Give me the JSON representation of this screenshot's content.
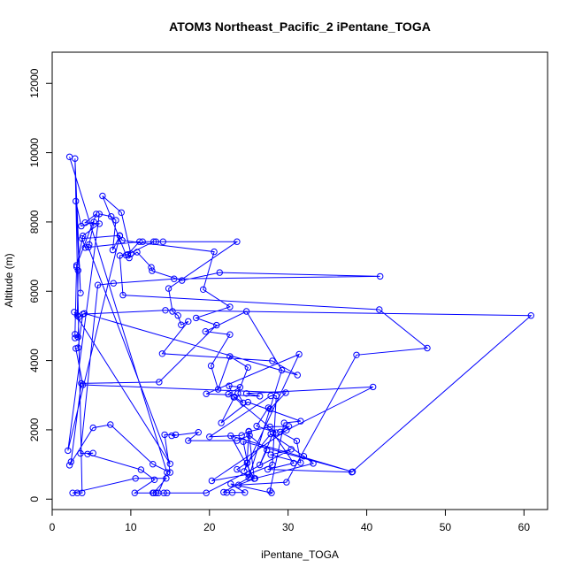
{
  "chart_data": {
    "type": "line",
    "title": "ATOM3 Northeast_Pacific_2 iPentane_TOGA",
    "xlabel": "iPentane_TOGA",
    "ylabel": "Altitude (m)",
    "xlim": [
      0,
      63
    ],
    "ylim": [
      -300,
      12900
    ],
    "x_ticks": [
      0,
      10,
      20,
      30,
      40,
      50,
      60
    ],
    "y_ticks": [
      0,
      2000,
      4000,
      6000,
      8000,
      10000,
      12000
    ],
    "series_color": "#0000ff",
    "marker": "open-circle",
    "series": [
      {
        "points": [
          [
            2.2,
            9880
          ],
          [
            14.6,
            770
          ],
          [
            13.5,
            180
          ],
          [
            12.9,
            180
          ],
          [
            14.5,
            600
          ],
          [
            10.6,
            600
          ],
          [
            2.6,
            180
          ],
          [
            3.2,
            180
          ],
          [
            3.8,
            180
          ],
          [
            2.9,
            9830
          ],
          [
            3.6,
            5950
          ],
          [
            3.0,
            8600
          ],
          [
            3.7,
            7880
          ],
          [
            5.3,
            8000
          ],
          [
            4.7,
            7350
          ],
          [
            4.6,
            7270
          ],
          [
            15.0,
            1020
          ],
          [
            2.8,
            5400
          ],
          [
            3.2,
            5300
          ],
          [
            3.3,
            6600
          ],
          [
            3.1,
            6700
          ],
          [
            3.9,
            7600
          ],
          [
            6.0,
            7950
          ],
          [
            4.2,
            7980
          ],
          [
            5.6,
            8230
          ],
          [
            3.1,
            6750
          ],
          [
            2.9,
            4760
          ],
          [
            2.9,
            4650
          ],
          [
            3.3,
            4680
          ],
          [
            3.4,
            5260
          ],
          [
            4.1,
            5360
          ],
          [
            31.2,
            3580
          ],
          [
            28.0,
            3990
          ],
          [
            14.0,
            4200
          ],
          [
            17.3,
            5130
          ],
          [
            16.4,
            5030
          ],
          [
            16.0,
            5300
          ],
          [
            15.3,
            5420
          ],
          [
            14.8,
            6080
          ],
          [
            23.5,
            7430
          ],
          [
            11.5,
            7430
          ],
          [
            13.2,
            7430
          ],
          [
            14.1,
            7430
          ],
          [
            12.9,
            7430
          ],
          [
            9.4,
            7040
          ],
          [
            6.4,
            8750
          ],
          [
            8.8,
            8270
          ],
          [
            10.0,
            7080
          ],
          [
            9.8,
            6960
          ],
          [
            10.8,
            7130
          ],
          [
            12.6,
            6690
          ],
          [
            12.7,
            6590
          ],
          [
            16.5,
            6310
          ],
          [
            21.3,
            6540
          ],
          [
            41.7,
            6430
          ],
          [
            15.5,
            6360
          ],
          [
            7.8,
            6230
          ],
          [
            5.8,
            6180
          ],
          [
            3.6,
            1320
          ],
          [
            5.2,
            1330
          ],
          [
            4.5,
            1300
          ],
          [
            11.3,
            850
          ],
          [
            13.0,
            560
          ],
          [
            10.5,
            180
          ],
          [
            13.2,
            180
          ],
          [
            14.6,
            180
          ],
          [
            14.2,
            180
          ],
          [
            12.8,
            180
          ],
          [
            19.6,
            180
          ],
          [
            30.4,
            1440
          ],
          [
            27.8,
            1280
          ],
          [
            31.6,
            1050
          ],
          [
            31.1,
            1680
          ],
          [
            29.0,
            1940
          ],
          [
            30.1,
            2100
          ],
          [
            27.7,
            2090
          ],
          [
            25.0,
            1950
          ],
          [
            25.7,
            590
          ],
          [
            22.7,
            1830
          ],
          [
            38.2,
            790
          ],
          [
            24.3,
            1660
          ],
          [
            25.2,
            640
          ],
          [
            21.8,
            200
          ],
          [
            22.2,
            190
          ],
          [
            22.9,
            190
          ],
          [
            24.5,
            190
          ],
          [
            22.7,
            440
          ],
          [
            27.9,
            180
          ],
          [
            27.7,
            240
          ],
          [
            29.5,
            2200
          ],
          [
            31.6,
            2250
          ],
          [
            24.9,
            2800
          ],
          [
            21.5,
            2200
          ],
          [
            23.2,
            2950
          ],
          [
            24.3,
            2780
          ],
          [
            23.6,
            3050
          ],
          [
            24.9,
            3800
          ],
          [
            22.6,
            4120
          ],
          [
            21.1,
            3170
          ],
          [
            20.2,
            3850
          ],
          [
            22.6,
            4750
          ],
          [
            19.5,
            4840
          ],
          [
            24.7,
            5420
          ],
          [
            29.2,
            3720
          ],
          [
            25.0,
            620
          ],
          [
            23.5,
            860
          ],
          [
            24.8,
            1050
          ],
          [
            24.4,
            800
          ],
          [
            31.4,
            4180
          ],
          [
            19.6,
            3040
          ],
          [
            26.4,
            2970
          ],
          [
            24.7,
            3050
          ],
          [
            40.8,
            3240
          ],
          [
            29.8,
            1990
          ],
          [
            20.3,
            530
          ],
          [
            25.0,
            720
          ],
          [
            28.0,
            990
          ],
          [
            28.5,
            2980
          ],
          [
            27.8,
            2980
          ],
          [
            20.0,
            1800
          ],
          [
            24.1,
            1840
          ],
          [
            25.0,
            1960
          ],
          [
            24.8,
            1040
          ],
          [
            27.8,
            1880
          ],
          [
            32.0,
            1240
          ],
          [
            33.2,
            1030
          ],
          [
            25.8,
            600
          ],
          [
            23.7,
            410
          ],
          [
            29.8,
            490
          ],
          [
            38.7,
            4160
          ],
          [
            47.7,
            4360
          ],
          [
            41.6,
            5470
          ],
          [
            9.0,
            5890
          ],
          [
            8.6,
            7030
          ],
          [
            9.6,
            7060
          ],
          [
            11.1,
            7430
          ],
          [
            4.2,
            7260
          ],
          [
            3.8,
            7520
          ],
          [
            8.6,
            7610
          ],
          [
            2.0,
            1400
          ],
          [
            6.0,
            8230
          ],
          [
            7.5,
            8160
          ],
          [
            8.1,
            8050
          ],
          [
            7.7,
            7190
          ],
          [
            8.6,
            7600
          ],
          [
            8.9,
            7470
          ],
          [
            20.6,
            7140
          ],
          [
            19.2,
            6050
          ],
          [
            22.6,
            5550
          ],
          [
            18.3,
            5230
          ],
          [
            20.9,
            5020
          ],
          [
            13.6,
            3380
          ],
          [
            3.7,
            3340
          ],
          [
            2.4,
            1080
          ],
          [
            2.2,
            980
          ],
          [
            5.2,
            2060
          ],
          [
            7.4,
            2150
          ],
          [
            12.8,
            1010
          ],
          [
            15.0,
            770
          ],
          [
            14.3,
            1860
          ],
          [
            15.7,
            1860
          ],
          [
            15.2,
            1830
          ],
          [
            18.6,
            1930
          ],
          [
            17.3,
            1690
          ],
          [
            23.5,
            1690
          ],
          [
            25.1,
            1840
          ],
          [
            27.3,
            1420
          ],
          [
            26.4,
            990
          ],
          [
            28.1,
            1910
          ],
          [
            30.7,
            1040
          ],
          [
            27.4,
            860
          ],
          [
            38.1,
            780
          ],
          [
            60.9,
            5300
          ],
          [
            14.4,
            5450
          ],
          [
            3.9,
            5340
          ],
          [
            3.3,
            4370
          ],
          [
            3.0,
            4350
          ],
          [
            3.9,
            3300
          ],
          [
            29.7,
            3070
          ],
          [
            27.7,
            2600
          ],
          [
            27.5,
            2640
          ],
          [
            26.0,
            2110
          ],
          [
            28.5,
            1920
          ],
          [
            23.1,
            2940
          ],
          [
            22.5,
            3270
          ],
          [
            23.9,
            3230
          ],
          [
            22.4,
            3030
          ]
        ]
      }
    ]
  }
}
